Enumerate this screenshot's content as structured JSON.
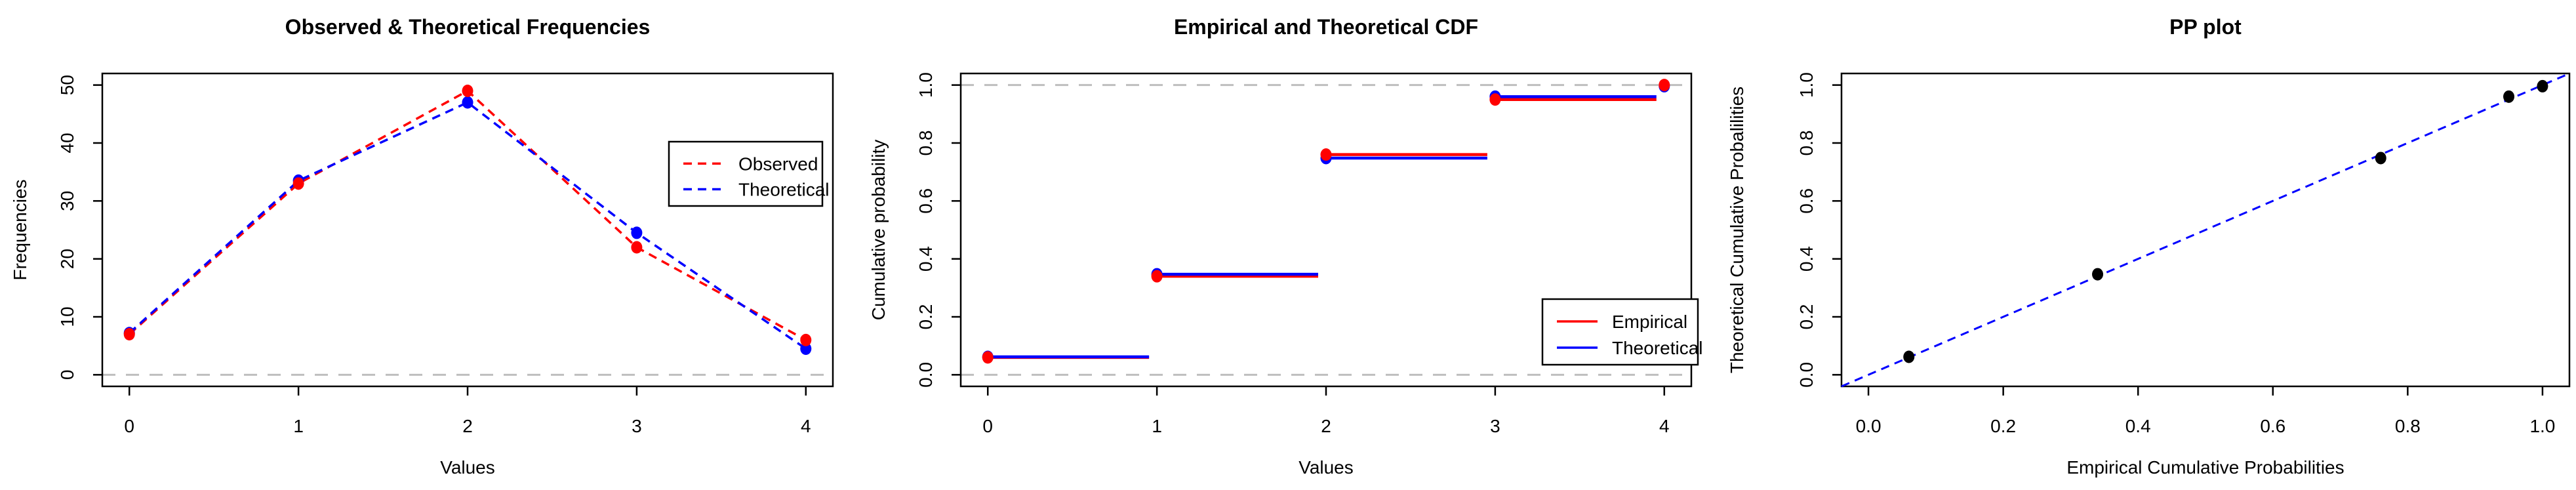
{
  "figure": {
    "background": "#ffffff",
    "palette": {
      "observed_red": "#ff0000",
      "theoretical_blue": "#0000ff",
      "reference_gray": "#bebebe",
      "point_black": "#000000",
      "axis_black": "#000000"
    }
  },
  "chart_data": [
    {
      "id": "frequencies",
      "type": "line",
      "title": "Observed & Theoretical Frequencies",
      "xlabel": "Values",
      "ylabel": "Frequencies",
      "xlim": [
        0,
        4
      ],
      "ylim": [
        0,
        50
      ],
      "xticks": [
        0,
        1,
        2,
        3,
        4
      ],
      "xtick_labels": [
        "0",
        "1",
        "2",
        "3",
        "4"
      ],
      "yticks": [
        0,
        10,
        20,
        30,
        40,
        50
      ],
      "ytick_labels": [
        "0",
        "10",
        "20",
        "30",
        "40",
        "50"
      ],
      "x": [
        0,
        1,
        2,
        3,
        4
      ],
      "series": [
        {
          "name": "Observed",
          "color": "#ff0000",
          "line_style": "dashed",
          "marker": "circle",
          "values": [
            7,
            33,
            49,
            22,
            6
          ]
        },
        {
          "name": "Theoretical",
          "color": "#0000ff",
          "line_style": "dashed",
          "marker": "circle",
          "values": [
            7.2,
            33.5,
            47,
            24.5,
            4.5
          ]
        }
      ],
      "reference_lines": [
        {
          "y": 0,
          "color": "#bebebe",
          "style": "dashed"
        }
      ],
      "grid": false,
      "legend": {
        "position": "right",
        "entries": [
          {
            "label": "Observed",
            "color": "#ff0000",
            "line_style": "dashed"
          },
          {
            "label": "Theoretical",
            "color": "#0000ff",
            "line_style": "dashed"
          }
        ]
      }
    },
    {
      "id": "cdf",
      "type": "step",
      "title": "Empirical and Theoretical CDF",
      "xlabel": "Values",
      "ylabel": "Cumulative probability",
      "xlim": [
        0,
        4
      ],
      "ylim": [
        0,
        1
      ],
      "xticks": [
        0,
        1,
        2,
        3,
        4
      ],
      "xtick_labels": [
        "0",
        "1",
        "2",
        "3",
        "4"
      ],
      "yticks": [
        0,
        0.2,
        0.4,
        0.6,
        0.8,
        1.0
      ],
      "ytick_labels": [
        "0.0",
        "0.2",
        "0.4",
        "0.6",
        "0.8",
        "1.0"
      ],
      "x": [
        0,
        1,
        2,
        3,
        4
      ],
      "series": [
        {
          "name": "Empirical",
          "color": "#ff0000",
          "line_style": "solid",
          "marker": "circle",
          "values": [
            0.06,
            0.34,
            0.76,
            0.95,
            1.0
          ]
        },
        {
          "name": "Theoretical",
          "color": "#0000ff",
          "line_style": "solid",
          "marker": "circle",
          "values": [
            0.062,
            0.347,
            0.748,
            0.96,
            0.996
          ]
        }
      ],
      "reference_lines": [
        {
          "y": 0,
          "color": "#bebebe",
          "style": "dashed"
        },
        {
          "y": 1,
          "color": "#bebebe",
          "style": "dashed"
        }
      ],
      "grid": false,
      "legend": {
        "position": "bottomright",
        "entries": [
          {
            "label": "Empirical",
            "color": "#ff0000",
            "line_style": "solid"
          },
          {
            "label": "Theoretical",
            "color": "#0000ff",
            "line_style": "solid"
          }
        ]
      }
    },
    {
      "id": "pp",
      "type": "scatter",
      "title": "PP plot",
      "xlabel": "Empirical Cumulative Probabilities",
      "ylabel": "Theoretical Cumulative Probalilities",
      "xlim": [
        0,
        1
      ],
      "ylim": [
        0,
        1
      ],
      "xticks": [
        0,
        0.2,
        0.4,
        0.6,
        0.8,
        1.0
      ],
      "xtick_labels": [
        "0.0",
        "0.2",
        "0.4",
        "0.6",
        "0.8",
        "1.0"
      ],
      "yticks": [
        0,
        0.2,
        0.4,
        0.6,
        0.8,
        1.0
      ],
      "ytick_labels": [
        "0.0",
        "0.2",
        "0.4",
        "0.6",
        "0.8",
        "1.0"
      ],
      "points_x": [
        0.06,
        0.34,
        0.76,
        0.95,
        1.0
      ],
      "points_y": [
        0.062,
        0.347,
        0.748,
        0.96,
        0.996
      ],
      "point_color": "#000000",
      "identity_line": {
        "color": "#0000ff",
        "style": "dashed",
        "from": 0,
        "to": 1
      },
      "grid": false,
      "legend": null
    }
  ]
}
